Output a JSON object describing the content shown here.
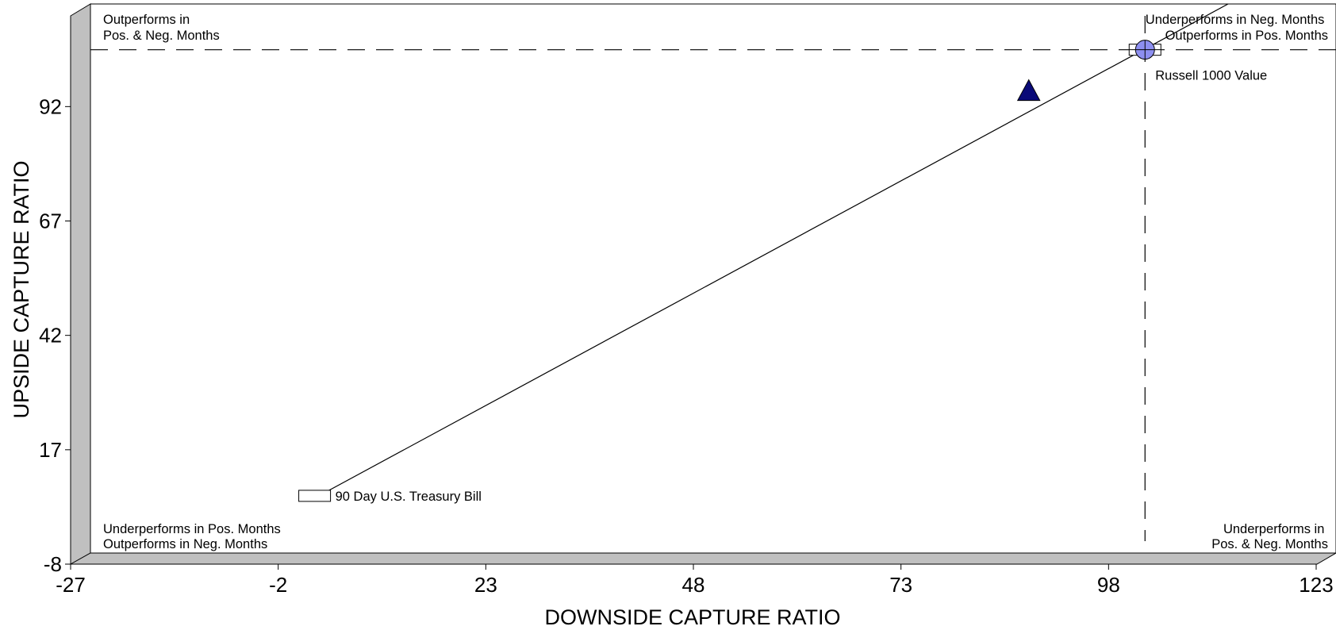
{
  "chart_data": {
    "type": "scatter",
    "title": "",
    "xlabel": "DOWNSIDE CAPTURE RATIO",
    "ylabel": "UPSIDE CAPTURE RATIO",
    "xlim": [
      -27,
      123
    ],
    "ylim": [
      -8,
      112
    ],
    "x_ticks": [
      "-27",
      "-2",
      "23",
      "48",
      "73",
      "98",
      "123"
    ],
    "y_ticks": [
      "-8",
      "17",
      "42",
      "67",
      "92"
    ],
    "grid": false,
    "reference_lines": {
      "x": 100,
      "y": 102
    },
    "quadrant_labels": {
      "top_left": [
        "Outperforms in",
        "Pos. & Neg. Months"
      ],
      "top_right": [
        "Underperforms in Neg. Months",
        "Outperforms in Pos. Months"
      ],
      "bottom_left": [
        "Underperforms in Pos. Months",
        "Outperforms in Neg. Months"
      ],
      "bottom_right": [
        "Underperforms in",
        "Pos. & Neg. Months"
      ]
    },
    "diagonal_line": {
      "from": [
        0.4,
        4.4
      ],
      "to": [
        110,
        112
      ]
    },
    "points": [
      {
        "label": "Russell 1000 Value",
        "x": 100,
        "y": 102,
        "marker": "circle",
        "color": "#8d8ff0"
      },
      {
        "label": "",
        "x": 86,
        "y": 93,
        "marker": "triangle",
        "color": "#0a0a78"
      },
      {
        "label": "90 Day U.S. Treasury Bill",
        "x": 0,
        "y": 4.5,
        "marker": "box",
        "color": "#ffffff"
      }
    ],
    "colors": {
      "panel_side": "#c0c0c0",
      "axis": "#000000"
    }
  }
}
